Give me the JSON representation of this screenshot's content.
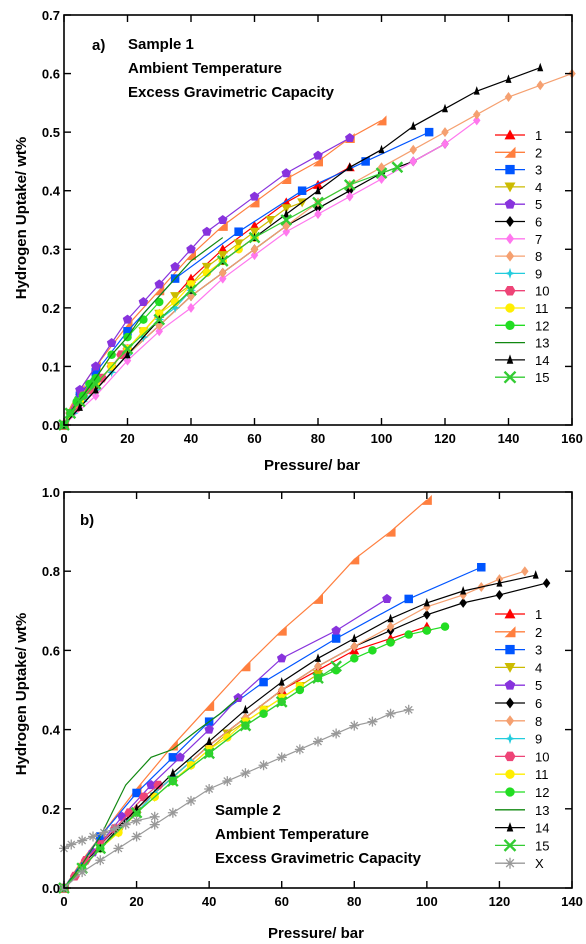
{
  "chart_data": [
    {
      "type": "line",
      "panel_label": "a)",
      "annotation": [
        "Sample 1",
        "Ambient Temperature",
        "Excess Gravimetric Capacity"
      ],
      "annotation_position": "top-left",
      "xlabel": "Pressure/ bar",
      "ylabel": "Hydrogen Uptake/ wt%",
      "xlim": [
        0,
        160
      ],
      "ylim": [
        0,
        0.7
      ],
      "xticks": [
        "0",
        "20",
        "40",
        "60",
        "80",
        "100",
        "120",
        "140",
        "160"
      ],
      "yticks": [
        "0.0",
        "0.1",
        "0.2",
        "0.3",
        "0.4",
        "0.5",
        "0.6",
        "0.7"
      ],
      "grid": false,
      "legend_position": "right",
      "series": [
        {
          "name": "1",
          "color": "#ff0000",
          "marker": "triangle-up",
          "x": [
            0,
            2,
            5,
            10,
            20,
            30,
            40,
            50,
            60,
            70,
            80,
            90
          ],
          "y": [
            0,
            0.02,
            0.04,
            0.07,
            0.13,
            0.19,
            0.25,
            0.3,
            0.34,
            0.38,
            0.41,
            0.44
          ]
        },
        {
          "name": "2",
          "color": "#ff7f3f",
          "marker": "triangle-corner",
          "x": [
            0,
            2,
            5,
            10,
            20,
            30,
            40,
            50,
            60,
            70,
            80,
            90,
            100
          ],
          "y": [
            0,
            0.03,
            0.06,
            0.1,
            0.17,
            0.23,
            0.29,
            0.34,
            0.38,
            0.42,
            0.45,
            0.49,
            0.52
          ]
        },
        {
          "name": "3",
          "color": "#0055ff",
          "marker": "square",
          "x": [
            0,
            5,
            10,
            20,
            35,
            55,
            75,
            95,
            115
          ],
          "y": [
            0,
            0.05,
            0.09,
            0.16,
            0.25,
            0.33,
            0.4,
            0.45,
            0.5
          ]
        },
        {
          "name": "4",
          "color": "#ccbb00",
          "marker": "triangle-down",
          "x": [
            0,
            2,
            5,
            10,
            15,
            20,
            25,
            30,
            35,
            40,
            45,
            50,
            55,
            60,
            65,
            70,
            75
          ],
          "y": [
            0,
            0.02,
            0.04,
            0.07,
            0.1,
            0.13,
            0.16,
            0.19,
            0.22,
            0.24,
            0.27,
            0.29,
            0.31,
            0.33,
            0.35,
            0.37,
            0.38
          ]
        },
        {
          "name": "5",
          "color": "#8833dd",
          "marker": "pentagon",
          "x": [
            0,
            5,
            10,
            15,
            20,
            25,
            30,
            35,
            40,
            45,
            50,
            60,
            70,
            80,
            90
          ],
          "y": [
            0,
            0.06,
            0.1,
            0.14,
            0.18,
            0.21,
            0.24,
            0.27,
            0.3,
            0.33,
            0.35,
            0.39,
            0.43,
            0.46,
            0.49
          ]
        },
        {
          "name": "6",
          "color": "#000000",
          "marker": "diamond",
          "x": [
            0,
            10,
            20,
            30,
            40,
            50,
            60,
            70,
            80,
            90,
            100,
            110,
            120
          ],
          "y": [
            0,
            0.06,
            0.12,
            0.17,
            0.22,
            0.26,
            0.3,
            0.34,
            0.37,
            0.4,
            0.43,
            0.45,
            0.48
          ]
        },
        {
          "name": "7",
          "color": "#ff77ee",
          "marker": "diamond",
          "x": [
            0,
            10,
            20,
            30,
            40,
            50,
            60,
            70,
            80,
            90,
            100,
            110,
            120,
            130
          ],
          "y": [
            0,
            0.05,
            0.11,
            0.16,
            0.2,
            0.25,
            0.29,
            0.33,
            0.36,
            0.39,
            0.42,
            0.45,
            0.48,
            0.52
          ]
        },
        {
          "name": "8",
          "color": "#f5a070",
          "marker": "diamond",
          "x": [
            0,
            10,
            20,
            30,
            40,
            50,
            60,
            70,
            80,
            90,
            100,
            110,
            120,
            130,
            140,
            150,
            160
          ],
          "y": [
            0,
            0.06,
            0.12,
            0.17,
            0.22,
            0.26,
            0.3,
            0.34,
            0.38,
            0.41,
            0.44,
            0.47,
            0.5,
            0.53,
            0.56,
            0.58,
            0.6
          ]
        },
        {
          "name": "9",
          "color": "#22ccdd",
          "marker": "star",
          "x": [
            0,
            3,
            6,
            10,
            15,
            20,
            25,
            30,
            35,
            40
          ],
          "y": [
            0,
            0.02,
            0.04,
            0.06,
            0.09,
            0.12,
            0.15,
            0.18,
            0.2,
            0.23
          ]
        },
        {
          "name": "10",
          "color": "#ee4477",
          "marker": "hexagon",
          "x": [
            0,
            2,
            4,
            6,
            8,
            10,
            12,
            15,
            18,
            20
          ],
          "y": [
            0,
            0.02,
            0.03,
            0.05,
            0.06,
            0.07,
            0.08,
            0.1,
            0.12,
            0.13
          ]
        },
        {
          "name": "11",
          "color": "#ffee00",
          "marker": "circle",
          "x": [
            0,
            5,
            10,
            15,
            20,
            25,
            30,
            35,
            40,
            45,
            50,
            55,
            60
          ],
          "y": [
            0,
            0.04,
            0.07,
            0.1,
            0.13,
            0.16,
            0.19,
            0.21,
            0.24,
            0.26,
            0.28,
            0.3,
            0.32
          ]
        },
        {
          "name": "12",
          "color": "#22dd22",
          "marker": "circle",
          "x": [
            0,
            2,
            4,
            6,
            8,
            10,
            15,
            20,
            25,
            30
          ],
          "y": [
            0,
            0.02,
            0.04,
            0.05,
            0.07,
            0.08,
            0.12,
            0.15,
            0.18,
            0.21
          ]
        },
        {
          "name": "13",
          "color": "#118811",
          "marker": "bowtie",
          "x": [
            0,
            3,
            6,
            10,
            15,
            20,
            25,
            30,
            35,
            40,
            45,
            50
          ],
          "y": [
            0,
            0.03,
            0.05,
            0.08,
            0.12,
            0.15,
            0.19,
            0.22,
            0.25,
            0.28,
            0.3,
            0.32
          ]
        },
        {
          "name": "14",
          "color": "#000000",
          "marker": "triangle-thin",
          "x": [
            0,
            5,
            10,
            20,
            30,
            40,
            50,
            60,
            70,
            80,
            90,
            100,
            110,
            120,
            130,
            140,
            150
          ],
          "y": [
            0,
            0.03,
            0.06,
            0.12,
            0.18,
            0.23,
            0.28,
            0.32,
            0.36,
            0.4,
            0.44,
            0.47,
            0.51,
            0.54,
            0.57,
            0.59,
            0.61
          ]
        },
        {
          "name": "15",
          "color": "#33cc33",
          "marker": "cross",
          "x": [
            0,
            2,
            5,
            10,
            20,
            30,
            40,
            50,
            60,
            70,
            80,
            90,
            100,
            105
          ],
          "y": [
            0,
            0.02,
            0.04,
            0.07,
            0.13,
            0.18,
            0.23,
            0.28,
            0.32,
            0.35,
            0.38,
            0.41,
            0.43,
            0.44
          ]
        }
      ]
    },
    {
      "type": "line",
      "panel_label": "b)",
      "annotation": [
        "Sample 2",
        "Ambient Temperature",
        "Excess Gravimetric Capacity"
      ],
      "annotation_position": "bottom-center",
      "xlabel": "Pressure/ bar",
      "ylabel": "Hydrogen Uptake/ wt%",
      "xlim": [
        0,
        140
      ],
      "ylim": [
        0,
        1.0
      ],
      "xticks": [
        "0",
        "20",
        "40",
        "60",
        "80",
        "100",
        "120",
        "140"
      ],
      "yticks": [
        "0.0",
        "0.2",
        "0.4",
        "0.6",
        "0.8",
        "1.0"
      ],
      "grid": false,
      "legend_position": "right",
      "series": [
        {
          "name": "1",
          "color": "#ff0000",
          "marker": "triangle-up",
          "x": [
            0,
            5,
            10,
            20,
            30,
            40,
            50,
            60,
            70,
            80,
            90,
            100
          ],
          "y": [
            0,
            0.05,
            0.1,
            0.2,
            0.28,
            0.36,
            0.43,
            0.5,
            0.55,
            0.6,
            0.63,
            0.66
          ]
        },
        {
          "name": "2",
          "color": "#ff7f3f",
          "marker": "triangle-corner",
          "x": [
            0,
            5,
            10,
            20,
            30,
            40,
            50,
            60,
            70,
            80,
            90,
            100
          ],
          "y": [
            0,
            0.07,
            0.13,
            0.25,
            0.36,
            0.46,
            0.56,
            0.65,
            0.73,
            0.83,
            0.9,
            0.98
          ]
        },
        {
          "name": "3",
          "color": "#0055ff",
          "marker": "square",
          "x": [
            0,
            10,
            20,
            30,
            40,
            55,
            75,
            95,
            115
          ],
          "y": [
            0,
            0.13,
            0.24,
            0.33,
            0.42,
            0.52,
            0.63,
            0.73,
            0.81
          ]
        },
        {
          "name": "4",
          "color": "#ccbb00",
          "marker": "triangle-down",
          "x": [
            0,
            5,
            10,
            15,
            20,
            25,
            30,
            35,
            40,
            45,
            50,
            55,
            60,
            65,
            70
          ],
          "y": [
            0,
            0.05,
            0.1,
            0.14,
            0.19,
            0.23,
            0.27,
            0.31,
            0.35,
            0.39,
            0.42,
            0.45,
            0.48,
            0.51,
            0.54
          ]
        },
        {
          "name": "5",
          "color": "#8833dd",
          "marker": "pentagon",
          "x": [
            0,
            8,
            16,
            24,
            32,
            40,
            48,
            60,
            75,
            89
          ],
          "y": [
            0,
            0.09,
            0.18,
            0.26,
            0.33,
            0.4,
            0.48,
            0.58,
            0.65,
            0.73
          ]
        },
        {
          "name": "6",
          "color": "#000000",
          "marker": "diamond",
          "x": [
            0,
            10,
            20,
            30,
            40,
            50,
            60,
            70,
            80,
            90,
            100,
            110,
            120,
            133
          ],
          "y": [
            0,
            0.11,
            0.2,
            0.28,
            0.36,
            0.43,
            0.5,
            0.56,
            0.61,
            0.65,
            0.69,
            0.72,
            0.74,
            0.77
          ]
        },
        {
          "name": "8",
          "color": "#f5a070",
          "marker": "diamond",
          "x": [
            0,
            10,
            20,
            30,
            40,
            50,
            60,
            70,
            80,
            90,
            100,
            110,
            115,
            120,
            127
          ],
          "y": [
            0,
            0.1,
            0.2,
            0.28,
            0.36,
            0.43,
            0.5,
            0.56,
            0.61,
            0.66,
            0.71,
            0.74,
            0.76,
            0.78,
            0.8
          ]
        },
        {
          "name": "9",
          "color": "#22ccdd",
          "marker": "star",
          "x": [
            0,
            5,
            10,
            15,
            20,
            25,
            30,
            35
          ],
          "y": [
            0,
            0.05,
            0.1,
            0.15,
            0.19,
            0.24,
            0.28,
            0.32
          ]
        },
        {
          "name": "10",
          "color": "#ee4477",
          "marker": "hexagon",
          "x": [
            0,
            3,
            6,
            10,
            14,
            18,
            22,
            26
          ],
          "y": [
            0,
            0.03,
            0.07,
            0.11,
            0.15,
            0.19,
            0.23,
            0.26
          ]
        },
        {
          "name": "11",
          "color": "#ffee00",
          "marker": "circle",
          "x": [
            0,
            5,
            10,
            15,
            20,
            25,
            30,
            35,
            40,
            45,
            50,
            55,
            60,
            65
          ],
          "y": [
            0,
            0.05,
            0.1,
            0.14,
            0.19,
            0.23,
            0.27,
            0.31,
            0.35,
            0.38,
            0.42,
            0.45,
            0.48,
            0.51
          ]
        },
        {
          "name": "12",
          "color": "#22dd22",
          "marker": "circle",
          "x": [
            0,
            5,
            10,
            20,
            30,
            40,
            50,
            55,
            60,
            65,
            70,
            75,
            80,
            85,
            90,
            95,
            100,
            105
          ],
          "y": [
            0,
            0.05,
            0.1,
            0.19,
            0.27,
            0.34,
            0.41,
            0.44,
            0.47,
            0.5,
            0.53,
            0.55,
            0.58,
            0.6,
            0.62,
            0.64,
            0.65,
            0.66
          ]
        },
        {
          "name": "13",
          "color": "#118811",
          "marker": "bowtie",
          "x": [
            0,
            5,
            10,
            17,
            24,
            30,
            37,
            43,
            48
          ],
          "y": [
            0,
            0.06,
            0.13,
            0.26,
            0.33,
            0.35,
            0.4,
            0.44,
            0.48
          ]
        },
        {
          "name": "14",
          "color": "#000000",
          "marker": "triangle-thin",
          "x": [
            0,
            10,
            20,
            30,
            40,
            50,
            60,
            70,
            80,
            90,
            100,
            110,
            120,
            130
          ],
          "y": [
            0,
            0.1,
            0.2,
            0.29,
            0.37,
            0.45,
            0.52,
            0.58,
            0.63,
            0.68,
            0.72,
            0.75,
            0.77,
            0.79
          ]
        },
        {
          "name": "15",
          "color": "#33cc33",
          "marker": "cross",
          "x": [
            0,
            5,
            10,
            20,
            30,
            40,
            50,
            60,
            70,
            75
          ],
          "y": [
            0,
            0.05,
            0.1,
            0.19,
            0.27,
            0.34,
            0.41,
            0.47,
            0.53,
            0.56
          ]
        },
        {
          "name": "X",
          "color": "#999999",
          "marker": "asterisk",
          "x": [
            0,
            5,
            10,
            15,
            20,
            25,
            30,
            35,
            40,
            45,
            50,
            55,
            60,
            65,
            70,
            75,
            80,
            85,
            90,
            95
          ],
          "y": [
            0,
            0.04,
            0.07,
            0.1,
            0.13,
            0.16,
            0.19,
            0.22,
            0.25,
            0.27,
            0.29,
            0.31,
            0.33,
            0.35,
            0.37,
            0.39,
            0.41,
            0.42,
            0.44,
            0.45
          ]
        },
        {
          "name": "X",
          "color": "#999999",
          "marker": "asterisk",
          "x": [
            0,
            2,
            5,
            8,
            11,
            14,
            17,
            20,
            25
          ],
          "y": [
            0.1,
            0.11,
            0.12,
            0.13,
            0.14,
            0.15,
            0.16,
            0.17,
            0.18
          ],
          "legend": false
        }
      ]
    }
  ]
}
